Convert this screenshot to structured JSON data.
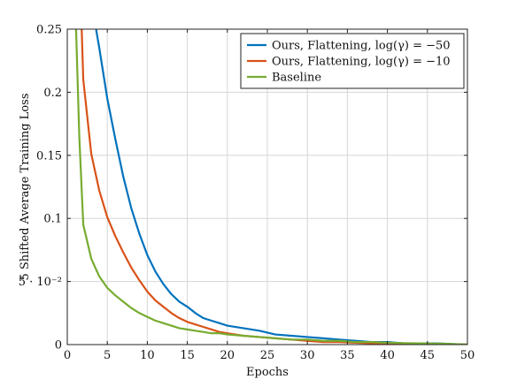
{
  "chart_data": {
    "type": "line",
    "xlabel": "Epochs",
    "ylabel": "5 Shifted Average Training Loss",
    "xlim": [
      0,
      50
    ],
    "ylim": [
      0,
      0.25
    ],
    "grid": true,
    "legend_position": "top-right",
    "xticks": [
      0,
      5,
      10,
      15,
      20,
      25,
      30,
      35,
      40,
      45,
      50
    ],
    "xtick_labels": [
      "0",
      "5",
      "10",
      "15",
      "20",
      "25",
      "30",
      "35",
      "40",
      "45",
      "50"
    ],
    "yticks": [
      0,
      0.05,
      0.1,
      0.15,
      0.2,
      0.25
    ],
    "ytick_labels": [
      "0",
      "5 · 10⁻²",
      "0.1",
      "0.15",
      "0.2",
      "0.25"
    ],
    "series": [
      {
        "name": "Ours, Flattening, log(γ) = −50",
        "color": "#0072BD",
        "x": [
          3.6,
          4,
          5,
          6,
          7,
          8,
          9,
          10,
          11,
          12,
          13,
          14,
          15,
          16,
          17,
          18,
          19,
          20,
          22,
          24,
          26,
          28,
          30,
          32,
          34,
          36,
          38,
          40,
          42,
          44,
          46,
          48,
          50
        ],
        "y": [
          0.25,
          0.235,
          0.195,
          0.163,
          0.133,
          0.108,
          0.088,
          0.071,
          0.058,
          0.048,
          0.04,
          0.034,
          0.03,
          0.025,
          0.021,
          0.019,
          0.017,
          0.015,
          0.013,
          0.011,
          0.008,
          0.007,
          0.006,
          0.005,
          0.004,
          0.003,
          0.002,
          0.002,
          0.001,
          0.001,
          0.001,
          0.0005,
          0.0
        ]
      },
      {
        "name": "Ours, Flattening, log(γ) = −10",
        "color": "#D95319",
        "x": [
          1.8,
          2,
          3,
          4,
          5,
          6,
          7,
          8,
          9,
          10,
          11,
          12,
          13,
          14,
          15,
          16,
          17,
          18,
          19,
          20,
          22,
          24,
          26,
          28,
          30,
          32,
          34,
          36,
          38,
          40,
          42,
          44,
          46,
          48,
          50
        ],
        "y": [
          0.25,
          0.21,
          0.151,
          0.122,
          0.101,
          0.086,
          0.073,
          0.061,
          0.051,
          0.042,
          0.035,
          0.03,
          0.025,
          0.021,
          0.018,
          0.016,
          0.014,
          0.012,
          0.01,
          0.009,
          0.007,
          0.006,
          0.005,
          0.004,
          0.003,
          0.002,
          0.002,
          0.0015,
          0.001,
          0.001,
          0.0008,
          0.0006,
          0.0004,
          0.0002,
          0.0
        ]
      },
      {
        "name": "Baseline",
        "color": "#77AC30",
        "x": [
          1.1,
          1.5,
          2,
          3,
          4,
          5,
          6,
          7,
          8,
          9,
          10,
          11,
          12,
          13,
          14,
          15,
          16,
          17,
          18,
          19,
          20,
          22,
          24,
          26,
          28,
          30,
          32,
          34,
          36,
          38,
          40,
          42,
          44,
          46,
          48,
          50
        ],
        "y": [
          0.25,
          0.165,
          0.095,
          0.068,
          0.054,
          0.045,
          0.039,
          0.034,
          0.029,
          0.025,
          0.022,
          0.019,
          0.017,
          0.015,
          0.013,
          0.012,
          0.011,
          0.01,
          0.009,
          0.009,
          0.008,
          0.007,
          0.006,
          0.005,
          0.004,
          0.004,
          0.003,
          0.003,
          0.002,
          0.002,
          0.0015,
          0.0012,
          0.001,
          0.0008,
          0.0005,
          0.0
        ]
      }
    ]
  }
}
